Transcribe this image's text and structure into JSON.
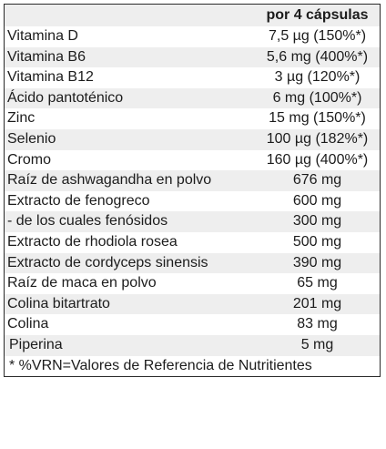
{
  "header": {
    "name_label": "",
    "value_label": "por 4 cápsulas"
  },
  "rows": [
    {
      "name": "Vitamina D",
      "value": "7,5 µg (150%*)"
    },
    {
      "name": "Vitamina B6",
      "value": "5,6 mg (400%*)"
    },
    {
      "name": "Vitamina B12",
      "value": "3 µg (120%*)"
    },
    {
      "name": "Ácido pantoténico",
      "value": "6 mg (100%*)"
    },
    {
      "name": "Zinc",
      "value": "15 mg (150%*)"
    },
    {
      "name": "Selenio",
      "value": "100 µg (182%*)"
    },
    {
      "name": "Cromo",
      "value": "160 µg (400%*)"
    },
    {
      "name": "Raíz de ashwagandha en polvo",
      "value": "676 mg"
    },
    {
      "name": "Extracto de fenogreco",
      "value": "600 mg"
    },
    {
      "name": "- de los cuales fenósidos",
      "value": "300 mg"
    },
    {
      "name": "Extracto de rhodiola rosea",
      "value": "500 mg"
    },
    {
      "name": "Extracto de cordyceps sinensis",
      "value": "390 mg"
    },
    {
      "name": "Raíz de maca en polvo",
      "value": "65 mg"
    },
    {
      "name": "Colina bitartrato",
      "value": "201 mg"
    },
    {
      "name": "Colina",
      "value": "83 mg"
    },
    {
      "name": "Piperina",
      "value": "5 mg"
    }
  ],
  "footnote": "* %VRN=Valores de Referencia de Nutritientes"
}
